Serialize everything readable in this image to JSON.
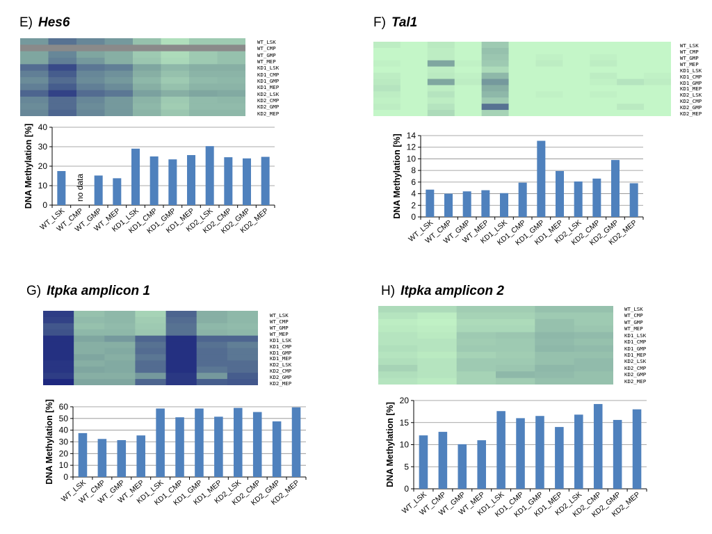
{
  "row_labels": [
    "WT_LSK",
    "WT_CMP",
    "WT_GMP",
    "WT_MEP",
    "KD1_LSK",
    "KD1_CMP",
    "KD1_GMP",
    "KD1_MEP",
    "KD2_LSK",
    "KD2_CMP",
    "KD2_GMP",
    "KD2_MEP"
  ],
  "palette": {
    "low": "#ccffcc",
    "mid": "#7fa6a0",
    "high": "#1a237e",
    "missing": "#8a8a8a",
    "bar": "#4f81bd",
    "grid": "#8c8c8c",
    "axis": "#000000"
  },
  "panels": [
    {
      "id": "E",
      "letter": "E)",
      "gene": "Hes6",
      "heatmap": {
        "cells": [
          [
            0.55,
            0.7,
            0.62,
            0.55,
            0.35,
            0.18,
            0.3,
            0.3
          ],
          [
            -1,
            -1,
            -1,
            -1,
            -1,
            -1,
            -1,
            -1
          ],
          [
            0.5,
            0.62,
            0.5,
            0.45,
            0.3,
            0.2,
            0.3,
            0.35
          ],
          [
            0.5,
            0.65,
            0.55,
            0.45,
            0.32,
            0.22,
            0.3,
            0.35
          ],
          [
            0.72,
            0.85,
            0.68,
            0.65,
            0.5,
            0.4,
            0.45,
            0.45
          ],
          [
            0.65,
            0.78,
            0.62,
            0.58,
            0.45,
            0.35,
            0.42,
            0.42
          ],
          [
            0.6,
            0.72,
            0.6,
            0.55,
            0.4,
            0.3,
            0.38,
            0.4
          ],
          [
            0.65,
            0.78,
            0.65,
            0.6,
            0.45,
            0.35,
            0.42,
            0.42
          ],
          [
            0.75,
            0.88,
            0.72,
            0.68,
            0.52,
            0.45,
            0.5,
            0.48
          ],
          [
            0.62,
            0.72,
            0.62,
            0.55,
            0.42,
            0.3,
            0.38,
            0.4
          ],
          [
            0.6,
            0.72,
            0.6,
            0.55,
            0.4,
            0.28,
            0.38,
            0.38
          ],
          [
            0.62,
            0.75,
            0.62,
            0.55,
            0.42,
            0.32,
            0.4,
            0.4
          ]
        ]
      },
      "chart_data": {
        "type": "bar",
        "categories": [
          "WT_LSK",
          "WT_CMP",
          "WT_GMP",
          "WT_MEP",
          "KD1_LSK",
          "KD1_CMP",
          "KD1_GMP",
          "KD1_MEP",
          "KD2_LSK",
          "KD2_CMP",
          "KD2_GMP",
          "KD2_MEP"
        ],
        "values": [
          17.5,
          null,
          15.2,
          13.8,
          29,
          25,
          23.5,
          25.7,
          30.3,
          24.6,
          24,
          24.8
        ],
        "annotations": [
          {
            "category": "WT_CMP",
            "text": "no data"
          }
        ],
        "ylabel": "DNA Methylation [%]",
        "ylim": [
          0,
          40
        ],
        "yticks": [
          0,
          10,
          20,
          30,
          40
        ],
        "grid": true
      }
    },
    {
      "id": "F",
      "letter": "F)",
      "gene": "Tal1",
      "heatmap": {
        "cells": [
          [
            0.1,
            0.05,
            0.12,
            0.05,
            0.3,
            0.05,
            0.05,
            0.05,
            0.05,
            0.05,
            0.05
          ],
          [
            0.05,
            0.05,
            0.1,
            0.05,
            0.35,
            0.05,
            0.05,
            0.05,
            0.05,
            0.05,
            0.05
          ],
          [
            0.05,
            0.05,
            0.1,
            0.05,
            0.32,
            0.05,
            0.08,
            0.05,
            0.08,
            0.05,
            0.05
          ],
          [
            0.08,
            0.05,
            0.5,
            0.08,
            0.3,
            0.05,
            0.1,
            0.05,
            0.1,
            0.05,
            0.05
          ],
          [
            0.05,
            0.05,
            0.1,
            0.05,
            0.2,
            0.05,
            0.05,
            0.05,
            0.05,
            0.05,
            0.05
          ],
          [
            0.1,
            0.05,
            0.12,
            0.08,
            0.4,
            0.05,
            0.05,
            0.05,
            0.1,
            0.05,
            0.08
          ],
          [
            0.12,
            0.05,
            0.5,
            0.1,
            0.55,
            0.05,
            0.05,
            0.05,
            0.08,
            0.15,
            0.1
          ],
          [
            0.15,
            0.05,
            0.1,
            0.05,
            0.45,
            0.05,
            0.05,
            0.05,
            0.05,
            0.05,
            0.05
          ],
          [
            0.1,
            0.05,
            0.15,
            0.05,
            0.4,
            0.05,
            0.08,
            0.05,
            0.08,
            0.05,
            0.05
          ],
          [
            0.08,
            0.05,
            0.1,
            0.05,
            0.3,
            0.05,
            0.05,
            0.05,
            0.05,
            0.05,
            0.05
          ],
          [
            0.1,
            0.05,
            0.15,
            0.05,
            0.7,
            0.05,
            0.05,
            0.05,
            0.05,
            0.12,
            0.05
          ],
          [
            0.05,
            0.05,
            0.2,
            0.05,
            0.25,
            0.05,
            0.05,
            0.05,
            0.05,
            0.05,
            0.05
          ]
        ]
      },
      "chart_data": {
        "type": "bar",
        "categories": [
          "WT_LSK",
          "WT_CMP",
          "WT_GMP",
          "WT_MEP",
          "KD1_LSK",
          "KD1_CMP",
          "KD1_GMP",
          "KD1_MEP",
          "KD2_LSK",
          "KD2_CMP",
          "KD2_GMP",
          "KD2_MEP"
        ],
        "values": [
          4.7,
          4.0,
          4.4,
          4.6,
          4.1,
          5.9,
          13.1,
          7.9,
          6.1,
          6.6,
          9.8,
          5.8
        ],
        "ylabel": "DNA Methylation [%]",
        "ylim": [
          0,
          14
        ],
        "yticks": [
          0,
          2,
          4,
          6,
          8,
          10,
          12,
          14
        ],
        "grid": true
      }
    },
    {
      "id": "G",
      "letter": "G)",
      "gene": "Itpka amplicon 1",
      "heatmap": {
        "cells": [
          [
            0.9,
            0.35,
            0.4,
            0.25,
            0.75,
            0.45,
            0.4
          ],
          [
            0.88,
            0.38,
            0.4,
            0.28,
            0.72,
            0.45,
            0.4
          ],
          [
            0.8,
            0.35,
            0.38,
            0.3,
            0.7,
            0.4,
            0.38
          ],
          [
            0.82,
            0.4,
            0.4,
            0.32,
            0.7,
            0.42,
            0.4
          ],
          [
            0.95,
            0.5,
            0.55,
            0.75,
            0.95,
            0.75,
            0.75
          ],
          [
            0.95,
            0.45,
            0.45,
            0.7,
            0.95,
            0.7,
            0.65
          ],
          [
            0.95,
            0.45,
            0.48,
            0.72,
            0.95,
            0.72,
            0.68
          ],
          [
            0.95,
            0.5,
            0.45,
            0.68,
            0.95,
            0.72,
            0.68
          ],
          [
            0.93,
            0.45,
            0.48,
            0.72,
            0.95,
            0.72,
            0.72
          ],
          [
            0.93,
            0.5,
            0.48,
            0.72,
            0.95,
            0.68,
            0.72
          ],
          [
            0.9,
            0.45,
            0.45,
            0.55,
            0.92,
            0.55,
            0.78
          ],
          [
            0.98,
            0.5,
            0.5,
            0.75,
            0.92,
            0.78,
            0.8
          ]
        ]
      },
      "chart_data": {
        "type": "bar",
        "categories": [
          "WT_LSK",
          "WT_CMP",
          "WT_GMP",
          "WT_MEP",
          "KD1_LSK",
          "KD1_CMP",
          "KD1_GMP",
          "KD1_MEP",
          "KD2_LSK",
          "KD2_CMP",
          "KD2_GMP",
          "KD2_MEP"
        ],
        "values": [
          37.5,
          32.5,
          31.5,
          35.5,
          58.5,
          51,
          58.5,
          51.5,
          59,
          55.5,
          47.5,
          59.5
        ],
        "ylabel": "DNA Methylation [%]",
        "ylim": [
          0,
          60
        ],
        "yticks": [
          0,
          10,
          20,
          30,
          40,
          50,
          60
        ],
        "grid": true
      }
    },
    {
      "id": "H",
      "letter": "H)",
      "gene": "Itpka amplicon 2",
      "heatmap": {
        "cells": [
          [
            0.2,
            0.2,
            0.28,
            0.28,
            0.35,
            0.35
          ],
          [
            0.15,
            0.1,
            0.25,
            0.25,
            0.3,
            0.3
          ],
          [
            0.1,
            0.08,
            0.2,
            0.2,
            0.35,
            0.3
          ],
          [
            0.12,
            0.1,
            0.22,
            0.22,
            0.35,
            0.32
          ],
          [
            0.15,
            0.12,
            0.3,
            0.32,
            0.4,
            0.38
          ],
          [
            0.15,
            0.15,
            0.28,
            0.3,
            0.38,
            0.35
          ],
          [
            0.18,
            0.15,
            0.3,
            0.3,
            0.4,
            0.38
          ],
          [
            0.15,
            0.12,
            0.25,
            0.28,
            0.35,
            0.35
          ],
          [
            0.18,
            0.15,
            0.3,
            0.3,
            0.35,
            0.38
          ],
          [
            0.25,
            0.15,
            0.3,
            0.32,
            0.4,
            0.38
          ],
          [
            0.18,
            0.15,
            0.25,
            0.4,
            0.38,
            0.35
          ],
          [
            0.15,
            0.12,
            0.25,
            0.28,
            0.35,
            0.35
          ]
        ]
      },
      "chart_data": {
        "type": "bar",
        "categories": [
          "WT_LSK",
          "WT_CMP",
          "WT_GMP",
          "WT_MEP",
          "KD1_LSK",
          "KD1_CMP",
          "KD1_GMP",
          "KD1_MEP",
          "KD2_LSK",
          "KD2_CMP",
          "KD2_GMP",
          "KD2_MEP"
        ],
        "values": [
          12.1,
          12.9,
          10.1,
          11,
          17.6,
          16,
          16.5,
          14,
          16.8,
          19.2,
          15.6,
          18
        ],
        "ylabel": "DNA Methylation [%]",
        "ylim": [
          0,
          20
        ],
        "yticks": [
          0,
          5,
          10,
          15,
          20
        ],
        "grid": true
      }
    }
  ]
}
